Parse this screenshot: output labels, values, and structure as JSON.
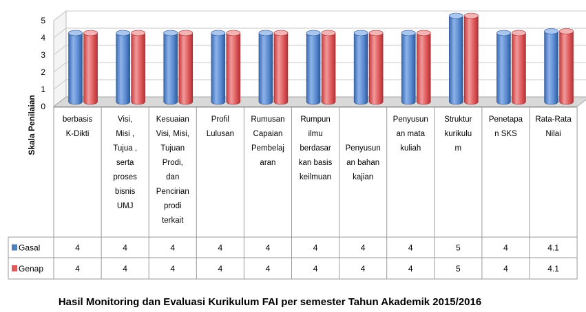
{
  "chart_data": {
    "type": "bar",
    "title": "Hasil Monitoring dan Evaluasi Kurikulum FAI per semester Tahun Akademik 2015/2016",
    "ylabel": "Skala Penilaian",
    "ylim": [
      0,
      5
    ],
    "yticks": [
      "0",
      "1",
      "2",
      "3",
      "4",
      "5"
    ],
    "grid": true,
    "legend": "in data table (left column)",
    "categories": [
      [
        "berbasis",
        "K-Dikti"
      ],
      [
        "Visi,",
        "Misi ,",
        "Tujua ,",
        "serta",
        "proses",
        "bisnis",
        "UMJ"
      ],
      [
        "Kesuaian",
        "Visi, Misi,",
        "Tujuan",
        "Prodi,",
        "dan",
        "Pencirian",
        "prodi",
        "terkait"
      ],
      [
        "Profil",
        "Lulusan"
      ],
      [
        "Rumusan",
        "Capaian",
        "Pembelaj",
        "aran"
      ],
      [
        "Rumpun",
        "ilmu",
        "berdasar",
        "kan basis",
        "keilmuan"
      ],
      [
        "",
        "",
        "Penyusun",
        "an bahan",
        "kajian"
      ],
      [
        "Penyusun",
        "an mata",
        "kuliah"
      ],
      [
        "Struktur",
        "kurikulu",
        "m"
      ],
      [
        "Penetapa",
        "n SKS"
      ],
      [
        "Rata-Rata",
        "Nilai"
      ]
    ],
    "series": [
      {
        "name": "Gasal",
        "color": "#4f81bd",
        "values": [
          4,
          4,
          4,
          4,
          4,
          4,
          4,
          4,
          5,
          4,
          4.1
        ],
        "labels": [
          "4",
          "4",
          "4",
          "4",
          "4",
          "4",
          "4",
          "4",
          "5",
          "4",
          "4.1"
        ]
      },
      {
        "name": "Genap",
        "color": "#e0595b",
        "values": [
          4,
          4,
          4,
          4,
          4,
          4,
          4,
          4,
          5,
          4,
          4.1
        ],
        "labels": [
          "4",
          "4",
          "4",
          "4",
          "4",
          "4",
          "4",
          "4",
          "5",
          "4",
          "4.1"
        ]
      }
    ]
  }
}
